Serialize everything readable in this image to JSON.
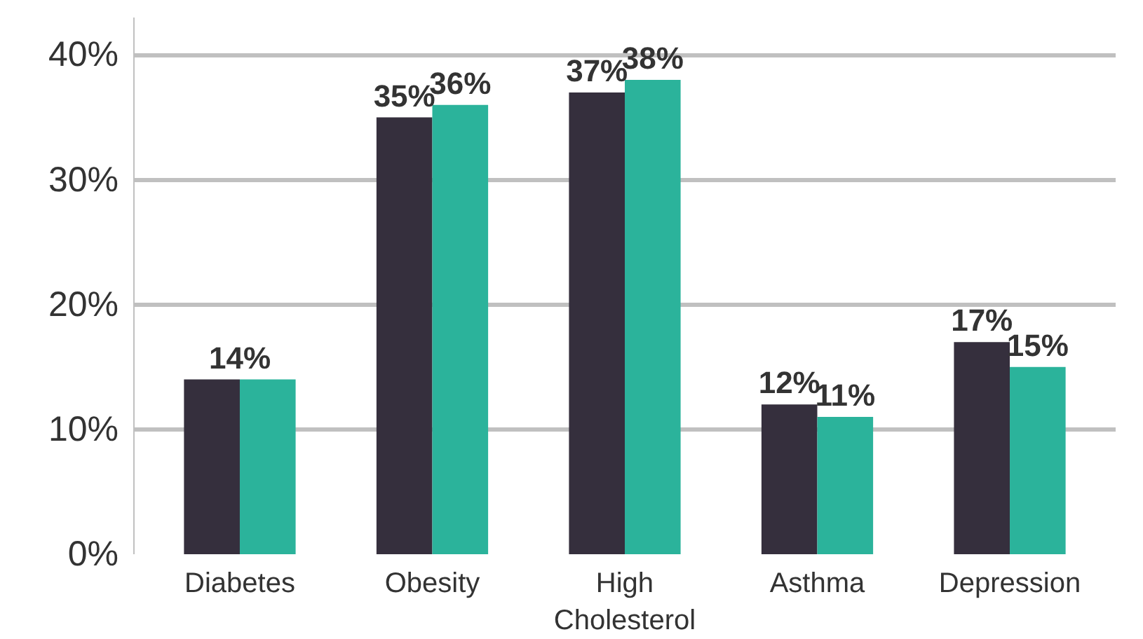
{
  "chart_data": {
    "type": "bar",
    "categories": [
      "Diabetes",
      "Obesity",
      "High\nCholesterol",
      "Asthma",
      "Depression"
    ],
    "series": [
      {
        "color": "#352f3d",
        "values": [
          14,
          35,
          37,
          12,
          17
        ],
        "value_labels": [
          "14%",
          "35%",
          "37%",
          "12%",
          "17%"
        ]
      },
      {
        "color": "#2bb39b",
        "values": [
          14,
          36,
          38,
          11,
          15
        ],
        "value_labels": [
          null,
          "36%",
          "38%",
          "11%",
          "15%"
        ]
      }
    ],
    "ylim": [
      0,
      43
    ],
    "yticks": [
      {
        "value": 0,
        "label": "0%"
      },
      {
        "value": 10,
        "label": "10%"
      },
      {
        "value": 20,
        "label": "20%"
      },
      {
        "value": 30,
        "label": "30%"
      },
      {
        "value": 40,
        "label": "40%"
      }
    ],
    "grid": "y"
  }
}
